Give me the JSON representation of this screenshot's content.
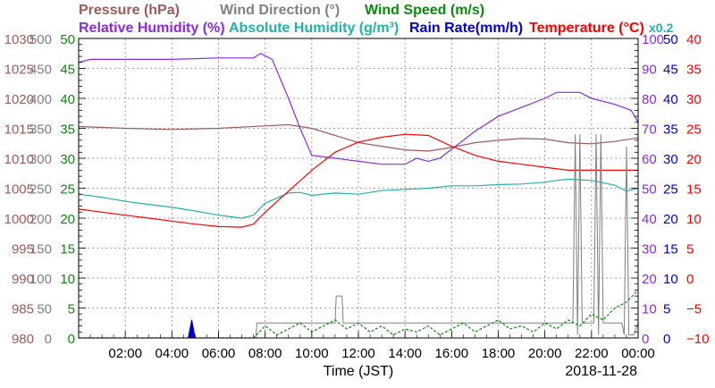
{
  "chart_data": {
    "type": "line",
    "date": "2018-11-28",
    "xlabel": "Time (JST)",
    "x_ticks": [
      "02:00",
      "04:00",
      "06:00",
      "08:00",
      "10:00",
      "12:00",
      "14:00",
      "16:00",
      "18:00",
      "20:00",
      "22:00",
      "00:00"
    ],
    "x_range_hours": [
      0,
      24
    ],
    "grid": true,
    "legend": [
      {
        "name": "Pressure (hPa)",
        "color": "#a05a5a"
      },
      {
        "name": "Wind Direction (°)",
        "color": "#808080"
      },
      {
        "name": "Wind Speed (m/s)",
        "color": "#0a8a0a"
      },
      {
        "name": "Relative Humidity (%)",
        "color": "#8a2be2"
      },
      {
        "name": "Absolute Humidity (g/m³)",
        "color": "#20b2aa"
      },
      {
        "name": "Rain Rate(mm/h)",
        "color": "#0000cc"
      },
      {
        "name": "Temperature (°C)",
        "color": "#ff0000"
      },
      {
        "name": "x0.2",
        "color": "#20b2aa"
      }
    ],
    "axes": [
      {
        "name": "pressure",
        "side": "left",
        "color": "#a05a5a",
        "range": [
          980,
          1030
        ],
        "ticks": [
          "1030",
          "1025",
          "1020",
          "1015",
          "1010",
          "1005",
          "1000",
          "995",
          "990",
          "985",
          "980"
        ]
      },
      {
        "name": "wind_direction",
        "side": "left",
        "color": "#808080",
        "range": [
          0,
          500
        ],
        "ticks": [
          "500",
          "450",
          "400",
          "350",
          "300",
          "250",
          "200",
          "150",
          "100",
          "50",
          "0"
        ]
      },
      {
        "name": "wind_speed",
        "side": "left",
        "color": "#0a8a0a",
        "range": [
          0,
          50
        ],
        "ticks": [
          "50",
          "45",
          "40",
          "35",
          "30",
          "25",
          "20",
          "15",
          "10",
          "5",
          "0"
        ]
      },
      {
        "name": "relative_humidity",
        "side": "right",
        "color": "#8a2be2",
        "range": [
          0,
          100
        ],
        "ticks": [
          "100",
          "90",
          "80",
          "70",
          "60",
          "50",
          "40",
          "30",
          "20",
          "10",
          "0"
        ]
      },
      {
        "name": "rain_rate",
        "side": "right",
        "color": "#0000cc",
        "range": [
          0,
          50
        ],
        "ticks": [
          "50",
          "45",
          "40",
          "35",
          "30",
          "25",
          "20",
          "15",
          "10",
          "5",
          "0"
        ]
      },
      {
        "name": "temperature",
        "side": "right",
        "color": "#ff0000",
        "range": [
          -10,
          40
        ],
        "ticks": [
          "40",
          "35",
          "30",
          "25",
          "20",
          "15",
          "10",
          "5",
          "0",
          "−5",
          "−10"
        ]
      }
    ],
    "series": [
      {
        "name": "Pressure (hPa)",
        "key": "pressure",
        "axis": "pressure",
        "color": "#a05a5a",
        "x": [
          0,
          2,
          4,
          6,
          8,
          9,
          10,
          11,
          12,
          13,
          14,
          15,
          16,
          17,
          18,
          19,
          20,
          21,
          22,
          23,
          24
        ],
        "y": [
          1015.3,
          1015.0,
          1014.8,
          1015.0,
          1015.4,
          1015.6,
          1015.0,
          1013.8,
          1012.6,
          1012.0,
          1011.4,
          1011.2,
          1011.8,
          1012.6,
          1013.0,
          1013.3,
          1013.2,
          1012.6,
          1012.4,
          1012.8,
          1013.4
        ]
      },
      {
        "name": "Relative Humidity (%)",
        "key": "rh",
        "axis": "relative_humidity",
        "color": "#8a2be2",
        "x": [
          0,
          0.5,
          2,
          4,
          6,
          7.5,
          7.8,
          8.3,
          9,
          9.5,
          10,
          11,
          12,
          13,
          14,
          14.5,
          15,
          15.5,
          16,
          17,
          18,
          19,
          20,
          20.5,
          21.5,
          22,
          23,
          23.7,
          24
        ],
        "y": [
          92,
          93,
          93,
          93,
          93.5,
          93.5,
          95,
          93,
          80,
          70,
          61,
          60,
          59,
          58,
          58,
          60,
          59,
          60,
          63,
          69,
          74,
          77,
          80,
          82,
          82,
          80,
          78,
          76,
          72
        ]
      },
      {
        "name": "Absolute Humidity (g/m³)",
        "key": "ah",
        "axis": "temperature",
        "color": "#20b2aa",
        "x": [
          0,
          1,
          2,
          3,
          4,
          5,
          6,
          7,
          7.5,
          8,
          9,
          9.5,
          10,
          11,
          12,
          13,
          14,
          15,
          16,
          17,
          18,
          19,
          20,
          20.5,
          21,
          22,
          23,
          23.5,
          24
        ],
        "y": [
          14,
          13.5,
          12.8,
          12.3,
          11.8,
          11.2,
          10.5,
          10,
          10.5,
          12.5,
          14.2,
          14.3,
          13.8,
          14.2,
          14,
          14.6,
          14.8,
          15,
          15.4,
          15.4,
          15.6,
          15.7,
          16,
          16.3,
          16.5,
          16.3,
          15.5,
          14.5,
          15
        ]
      },
      {
        "name": "Temperature (°C)",
        "key": "temp",
        "axis": "temperature",
        "color": "#ff0000",
        "x": [
          0,
          1,
          2,
          3,
          4,
          5,
          6,
          7,
          7.5,
          8,
          9,
          10,
          11,
          12,
          13,
          14,
          15,
          16,
          17,
          18,
          19,
          20,
          21,
          22,
          23,
          24
        ],
        "y": [
          11.5,
          11,
          10.5,
          10,
          9.5,
          9,
          8.6,
          8.5,
          9,
          11,
          14.5,
          18,
          21,
          22.7,
          23.5,
          24,
          23.8,
          22,
          20.5,
          19.5,
          19,
          18.5,
          18,
          18,
          18,
          18
        ]
      },
      {
        "name": "Wind Direction (°)",
        "key": "wdir",
        "axis": "wind_direction",
        "color": "#808080",
        "x": [
          0,
          7.6,
          7.65,
          11.0,
          11.05,
          11.3,
          11.35,
          20.2,
          21.2,
          21.3,
          21.4,
          21.5,
          21.6,
          22.1,
          22.2,
          22.3,
          22.4,
          22.5,
          23.3,
          23.4,
          23.5,
          23.6,
          23.8,
          24
        ],
        "y": [
          0,
          0,
          25,
          25,
          70,
          70,
          25,
          25,
          25,
          340,
          5,
          340,
          25,
          25,
          340,
          5,
          340,
          25,
          25,
          5,
          320,
          5,
          5,
          25
        ]
      },
      {
        "name": "Wind Speed (m/s)",
        "key": "wspd",
        "axis": "wind_speed",
        "color": "#0a8a0a",
        "x": [
          0,
          7.5,
          8,
          8.5,
          9,
          9.5,
          10,
          10.5,
          11,
          11.5,
          12,
          12.5,
          13,
          13.5,
          14,
          14.5,
          15,
          15.5,
          16,
          16.5,
          17,
          17.5,
          18,
          18.5,
          19,
          19.5,
          20,
          20.5,
          21,
          21.5,
          22,
          22.5,
          23,
          23.5,
          24
        ],
        "y": [
          0,
          0,
          2,
          0.5,
          1.5,
          2.5,
          1,
          2,
          3,
          1.5,
          2.5,
          1,
          2,
          0.5,
          1.5,
          1,
          2,
          0.5,
          1.5,
          2.5,
          1,
          2,
          3,
          1.5,
          2,
          1,
          2.5,
          1.5,
          3,
          2,
          4,
          3,
          5,
          6,
          8
        ]
      },
      {
        "name": "Rain Rate(mm/h)",
        "key": "rain",
        "axis": "rain_rate",
        "color": "#0000cc",
        "x": [
          4.7,
          4.85,
          5.0
        ],
        "y": [
          0,
          3,
          0
        ]
      }
    ]
  }
}
